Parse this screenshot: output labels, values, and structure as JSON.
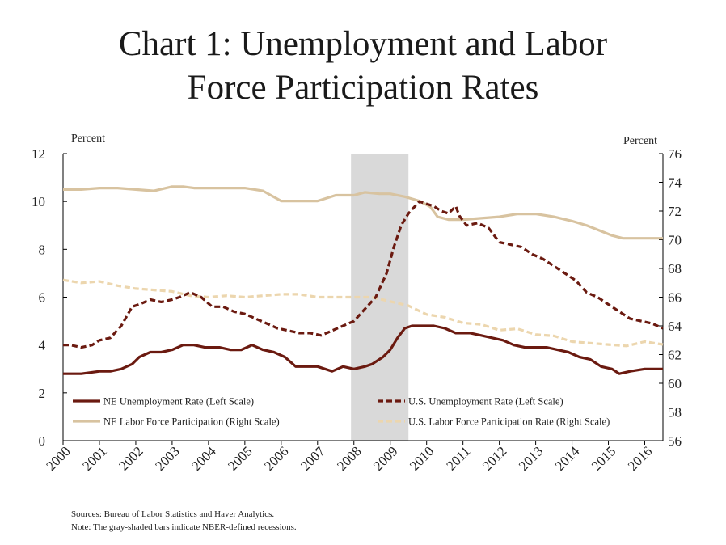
{
  "chart_data": {
    "type": "line",
    "title_lines": [
      "Chart 1: Unemployment and Labor",
      "Force Participation Rates"
    ],
    "left_axis": {
      "label": "Percent",
      "ylim": [
        0,
        12
      ],
      "ticks": [
        "0",
        "2",
        "4",
        "6",
        "8",
        "10",
        "12"
      ]
    },
    "right_axis": {
      "label": "Percent",
      "ylim": [
        56,
        76
      ],
      "ticks": [
        "56",
        "58",
        "60",
        "62",
        "64",
        "66",
        "68",
        "70",
        "72",
        "74",
        "76"
      ]
    },
    "x_axis": {
      "xlim": [
        2000,
        2016.5
      ],
      "ticks": [
        "2000",
        "2001",
        "2002",
        "2003",
        "2004",
        "2005",
        "2006",
        "2007",
        "2008",
        "2009",
        "2010",
        "2011",
        "2012",
        "2013",
        "2014",
        "2015",
        "2016"
      ]
    },
    "recessions": [
      {
        "start": 2007.92,
        "end": 2009.5
      }
    ],
    "grid": false,
    "legend_position": "bottom",
    "series": [
      {
        "name": "NE Unemployment Rate (Left Scale)",
        "axis": "left",
        "style": "solid",
        "color": "#6b1a10",
        "x": [
          2000,
          2000.5,
          2001,
          2001.3,
          2001.6,
          2001.9,
          2002.1,
          2002.4,
          2002.7,
          2003,
          2003.3,
          2003.6,
          2003.9,
          2004.3,
          2004.6,
          2004.9,
          2005.2,
          2005.5,
          2005.8,
          2006.1,
          2006.4,
          2006.7,
          2007,
          2007.4,
          2007.7,
          2008,
          2008.3,
          2008.5,
          2008.8,
          2009,
          2009.2,
          2009.4,
          2009.6,
          2009.9,
          2010.2,
          2010.5,
          2010.8,
          2011.2,
          2011.5,
          2011.8,
          2012.1,
          2012.4,
          2012.7,
          2013,
          2013.3,
          2013.6,
          2013.9,
          2014.2,
          2014.5,
          2014.8,
          2015.1,
          2015.3,
          2015.6,
          2016,
          2016.5
        ],
        "y": [
          2.8,
          2.8,
          2.9,
          2.9,
          3.0,
          3.2,
          3.5,
          3.7,
          3.7,
          3.8,
          4.0,
          4.0,
          3.9,
          3.9,
          3.8,
          3.8,
          4.0,
          3.8,
          3.7,
          3.5,
          3.1,
          3.1,
          3.1,
          2.9,
          3.1,
          3.0,
          3.1,
          3.2,
          3.5,
          3.8,
          4.3,
          4.7,
          4.8,
          4.8,
          4.8,
          4.7,
          4.5,
          4.5,
          4.4,
          4.3,
          4.2,
          4.0,
          3.9,
          3.9,
          3.9,
          3.8,
          3.7,
          3.5,
          3.4,
          3.1,
          3.0,
          2.8,
          2.9,
          3.0,
          3.0
        ]
      },
      {
        "name": "U.S. Unemployment Rate (Left Scale)",
        "axis": "left",
        "style": "dashed",
        "color": "#6b1a10",
        "x": [
          2000,
          2000.2,
          2000.5,
          2000.8,
          2001,
          2001.3,
          2001.6,
          2001.9,
          2002.1,
          2002.4,
          2002.7,
          2003,
          2003.2,
          2003.5,
          2003.8,
          2004.1,
          2004.4,
          2004.7,
          2005,
          2005.3,
          2005.6,
          2005.9,
          2006.2,
          2006.5,
          2006.8,
          2007.1,
          2007.4,
          2007.7,
          2008,
          2008.3,
          2008.6,
          2008.9,
          2009.1,
          2009.3,
          2009.5,
          2009.8,
          2010,
          2010.2,
          2010.4,
          2010.6,
          2010.8,
          2010.9,
          2011.1,
          2011.4,
          2011.7,
          2012,
          2012.3,
          2012.6,
          2012.9,
          2013.2,
          2013.5,
          2013.8,
          2014.1,
          2014.4,
          2014.7,
          2015,
          2015.3,
          2015.6,
          2015.9,
          2016.2,
          2016.5
        ],
        "y": [
          4.0,
          4.0,
          3.9,
          4.0,
          4.2,
          4.3,
          4.8,
          5.6,
          5.7,
          5.9,
          5.8,
          5.9,
          6.0,
          6.2,
          6.0,
          5.6,
          5.6,
          5.4,
          5.3,
          5.1,
          4.9,
          4.7,
          4.6,
          4.5,
          4.5,
          4.4,
          4.6,
          4.8,
          5.0,
          5.5,
          6.0,
          7.0,
          8.1,
          9.0,
          9.5,
          10.0,
          9.9,
          9.8,
          9.6,
          9.5,
          9.8,
          9.4,
          9.0,
          9.1,
          8.9,
          8.3,
          8.2,
          8.1,
          7.8,
          7.6,
          7.3,
          7.0,
          6.7,
          6.2,
          6.0,
          5.7,
          5.4,
          5.1,
          5.0,
          4.9,
          4.7
        ]
      },
      {
        "name": "NE Labor Force Participation (Right Scale)",
        "axis": "right",
        "style": "solid",
        "color": "#d8c3a0",
        "x": [
          2000,
          2000.5,
          2001,
          2001.5,
          2002,
          2002.5,
          2003,
          2003.3,
          2003.6,
          2004,
          2004.5,
          2005,
          2005.5,
          2006,
          2006.5,
          2007,
          2007.5,
          2008,
          2008.3,
          2008.7,
          2009,
          2009.4,
          2009.8,
          2010.1,
          2010.3,
          2010.6,
          2011,
          2011.5,
          2012,
          2012.5,
          2013,
          2013.5,
          2014,
          2014.4,
          2014.8,
          2015.1,
          2015.4,
          2016,
          2016.5
        ],
        "y": [
          73.5,
          73.5,
          73.6,
          73.6,
          73.5,
          73.4,
          73.7,
          73.7,
          73.6,
          73.6,
          73.6,
          73.6,
          73.4,
          72.7,
          72.7,
          72.7,
          73.1,
          73.1,
          73.3,
          73.2,
          73.2,
          73.0,
          72.7,
          72.3,
          71.6,
          71.4,
          71.4,
          71.5,
          71.6,
          71.8,
          71.8,
          71.6,
          71.3,
          71.0,
          70.6,
          70.3,
          70.1,
          70.1,
          70.1
        ]
      },
      {
        "name": "U.S. Labor Force Participation Rate (Right Scale)",
        "axis": "right",
        "style": "dashed",
        "color": "#ecd6ae",
        "x": [
          2000,
          2000.5,
          2001,
          2001.5,
          2002,
          2002.5,
          2003,
          2003.5,
          2004,
          2004.5,
          2005,
          2005.5,
          2006,
          2006.5,
          2007,
          2007.5,
          2008,
          2008.5,
          2009,
          2009.5,
          2010,
          2010.5,
          2011,
          2011.5,
          2012,
          2012.5,
          2013,
          2013.5,
          2014,
          2014.5,
          2015,
          2015.5,
          2016,
          2016.5
        ],
        "y": [
          67.2,
          67.0,
          67.1,
          66.8,
          66.6,
          66.5,
          66.4,
          66.1,
          66.0,
          66.1,
          66.0,
          66.1,
          66.2,
          66.2,
          66.0,
          66.0,
          66.0,
          66.0,
          65.7,
          65.4,
          64.8,
          64.6,
          64.2,
          64.1,
          63.7,
          63.8,
          63.4,
          63.3,
          62.9,
          62.8,
          62.7,
          62.6,
          62.9,
          62.7
        ]
      }
    ],
    "source_note": "Sources: Bureau of Labor Statistics and Haver Analytics.",
    "recession_note": "Note: The gray-shaded bars indicate NBER-defined recessions."
  }
}
